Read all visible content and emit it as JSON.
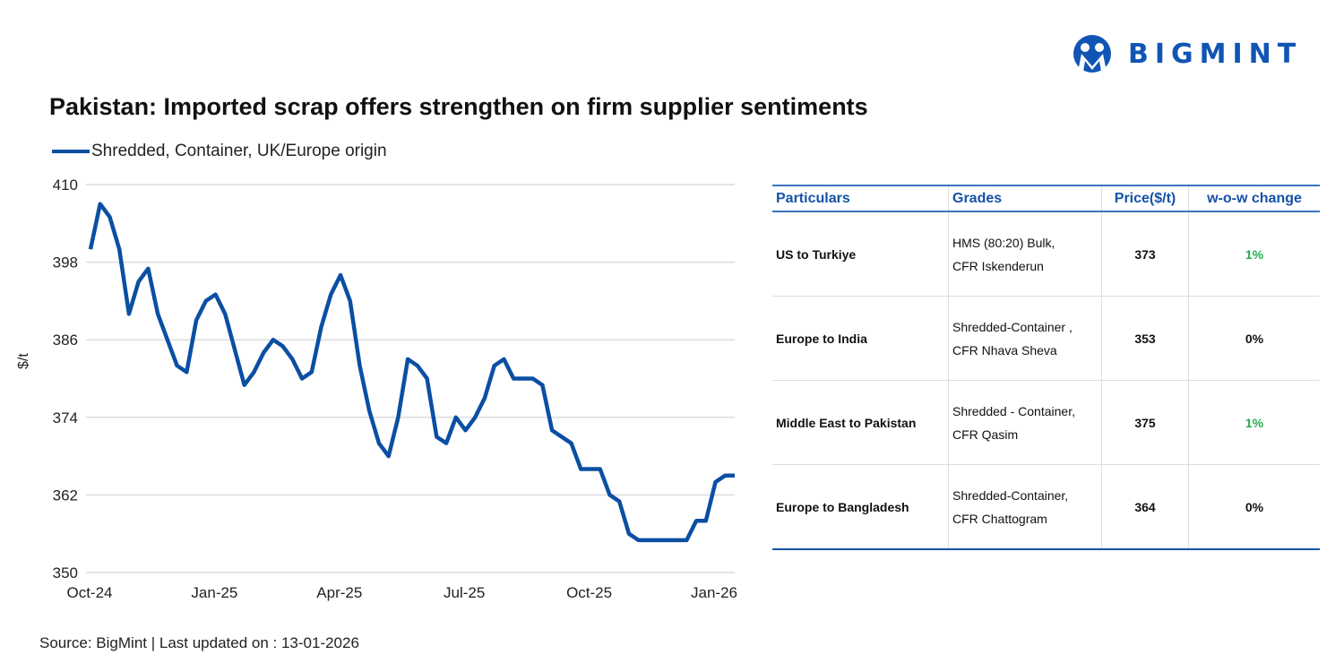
{
  "brand": {
    "name": "BIGMINT",
    "color": "#1155b4"
  },
  "title": "Pakistan: Imported scrap offers strengthen on firm supplier sentiments",
  "source": "Source: BigMint | Last updated on : 13-01-2026",
  "chart_data": {
    "type": "line",
    "title": "Pakistan: Imported scrap offers strengthen on firm supplier sentiments",
    "ylabel": "$/t",
    "xlabel": "",
    "ylim": [
      350,
      410
    ],
    "yticks": [
      350,
      362,
      374,
      386,
      398,
      410
    ],
    "xtick_labels": [
      "Oct-24",
      "Jan-25",
      "Apr-25",
      "Jul-25",
      "Oct-25",
      "Jan-26"
    ],
    "grid": true,
    "legend_position": "top-left",
    "series": [
      {
        "name": "Shredded, Container, UK/Europe origin",
        "color": "#0b4fa3",
        "values": [
          400,
          407,
          405,
          400,
          390,
          395,
          397,
          390,
          386,
          382,
          381,
          389,
          392,
          393,
          390,
          384.5,
          379,
          381,
          384,
          386,
          385,
          383,
          380,
          381,
          388,
          393,
          396,
          392,
          382,
          375,
          370,
          368,
          374,
          383,
          382,
          380,
          371,
          370,
          374,
          372,
          374,
          377,
          382,
          383,
          380,
          380,
          380,
          379,
          372,
          371,
          370,
          366,
          366,
          366,
          362,
          361,
          356,
          355,
          355,
          355,
          355,
          355,
          355,
          358,
          358,
          364,
          365,
          365
        ]
      }
    ]
  },
  "table": {
    "headers": [
      "Particulars",
      "Grades",
      "Price($/t)",
      "w-o-w change"
    ],
    "rows": [
      {
        "particular": "US to Turkiye",
        "grade_1": "HMS (80:20) Bulk,",
        "grade_2": "CFR Iskenderun",
        "price": "373",
        "change": "1%",
        "change_color": "#1fae4b"
      },
      {
        "particular": "Europe to India",
        "grade_1": "Shredded-Container ,",
        "grade_2": "CFR Nhava Sheva",
        "price": "353",
        "change": "0%",
        "change_color": "#111111"
      },
      {
        "particular": "Middle East to Pakistan",
        "grade_1": "Shredded - Container,",
        "grade_2": "CFR Qasim",
        "price": "375",
        "change": "1%",
        "change_color": "#1fae4b"
      },
      {
        "particular": "Europe to Bangladesh",
        "grade_1": "Shredded-Container,",
        "grade_2": "CFR Chattogram",
        "price": "364",
        "change": "0%",
        "change_color": "#111111"
      }
    ]
  }
}
